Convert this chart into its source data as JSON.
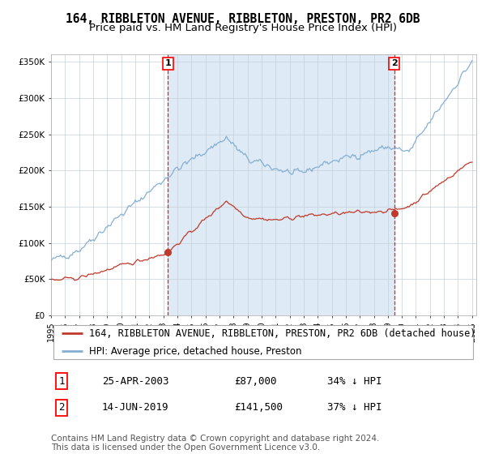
{
  "title": "164, RIBBLETON AVENUE, RIBBLETON, PRESTON, PR2 6DB",
  "subtitle": "Price paid vs. HM Land Registry's House Price Index (HPI)",
  "ylim": [
    0,
    360000
  ],
  "yticks": [
    0,
    50000,
    100000,
    150000,
    200000,
    250000,
    300000,
    350000
  ],
  "ytick_labels": [
    "£0",
    "£50K",
    "£100K",
    "£150K",
    "£200K",
    "£250K",
    "£300K",
    "£350K"
  ],
  "x_start_year": 1995,
  "x_end_year": 2025,
  "hpi_color": "#85afd4",
  "property_color": "#c0392b",
  "bg_color": "#deeaf5",
  "sale1_year": 2003.32,
  "sale1_price": 87000,
  "sale2_year": 2019.46,
  "sale2_price": 141500,
  "legend_property": "164, RIBBLETON AVENUE, RIBBLETON, PRESTON, PR2 6DB (detached house)",
  "legend_hpi": "HPI: Average price, detached house, Preston",
  "table_row1_num": "1",
  "table_row1_date": "25-APR-2003",
  "table_row1_price": "£87,000",
  "table_row1_hpi": "34% ↓ HPI",
  "table_row2_num": "2",
  "table_row2_date": "14-JUN-2019",
  "table_row2_price": "£141,500",
  "table_row2_hpi": "37% ↓ HPI",
  "footer": "Contains HM Land Registry data © Crown copyright and database right 2024.\nThis data is licensed under the Open Government Licence v3.0.",
  "title_fontsize": 10.5,
  "subtitle_fontsize": 9.5,
  "tick_fontsize": 7.5,
  "legend_fontsize": 8.5,
  "table_fontsize": 9,
  "footer_fontsize": 7.5
}
